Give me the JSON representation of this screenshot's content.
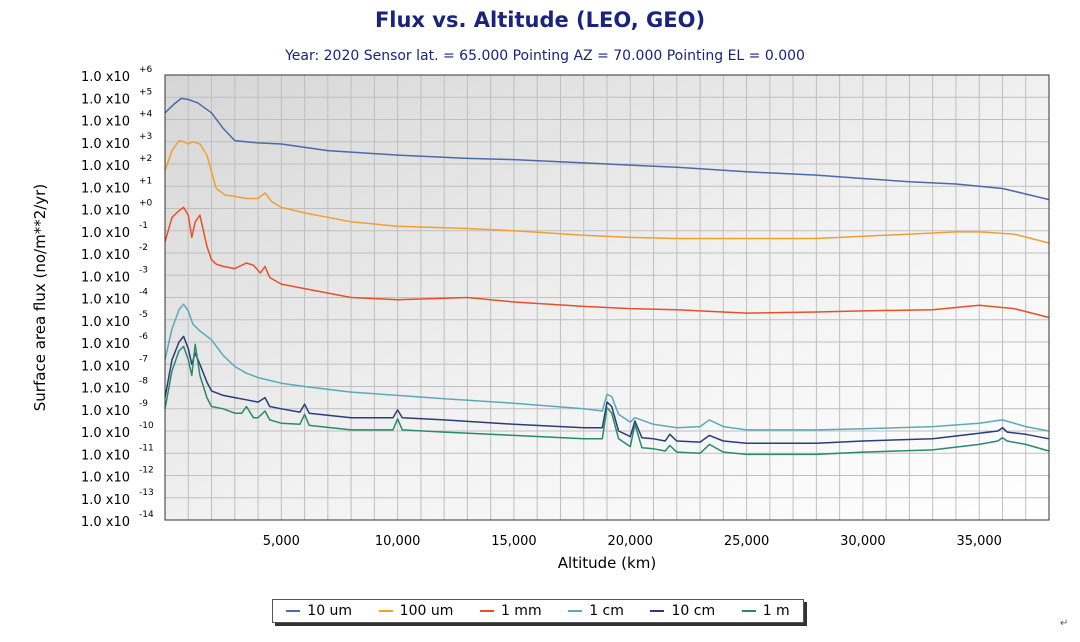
{
  "header": {
    "title": "Flux vs. Altitude (LEO, GEO)",
    "subtitle": "Year: 2020  Sensor lat. =  65.000  Pointing AZ =  70.000  Pointing EL =    0.000"
  },
  "chart_data": {
    "type": "line",
    "title": "Flux vs. Altitude (LEO, GEO)",
    "xlabel": "Altitude (km)",
    "ylabel": "Surface area flux (no/m**2/yr)",
    "xlim": [
      0,
      38000
    ],
    "ylim_log10": [
      -14,
      6
    ],
    "yscale": "log",
    "grid": true,
    "legend_position": "bottom",
    "x_ticks": [
      "5,000",
      "10,000",
      "15,000",
      "20,000",
      "25,000",
      "30,000",
      "35,000"
    ],
    "y_ticks": [
      {
        "base": "1.0 x10",
        "exp": "+6"
      },
      {
        "base": "1.0 x10",
        "exp": "+5"
      },
      {
        "base": "1.0 x10",
        "exp": "+4"
      },
      {
        "base": "1.0 x10",
        "exp": "+3"
      },
      {
        "base": "1.0 x10",
        "exp": "+2"
      },
      {
        "base": "1.0 x10",
        "exp": "+1"
      },
      {
        "base": "1.0 x10",
        "exp": "+0"
      },
      {
        "base": "1.0 x10",
        "exp": "-1"
      },
      {
        "base": "1.0 x10",
        "exp": "-2"
      },
      {
        "base": "1.0 x10",
        "exp": "-3"
      },
      {
        "base": "1.0 x10",
        "exp": "-4"
      },
      {
        "base": "1.0 x10",
        "exp": "-5"
      },
      {
        "base": "1.0 x10",
        "exp": "-6"
      },
      {
        "base": "1.0 x10",
        "exp": "-7"
      },
      {
        "base": "1.0 x10",
        "exp": "-8"
      },
      {
        "base": "1.0 x10",
        "exp": "-9"
      },
      {
        "base": "1.0 x10",
        "exp": "-10"
      },
      {
        "base": "1.0 x10",
        "exp": "-11"
      },
      {
        "base": "1.0 x10",
        "exp": "-12"
      },
      {
        "base": "1.0 x10",
        "exp": "-13"
      },
      {
        "base": "1.0 x10",
        "exp": "-14"
      }
    ],
    "series": [
      {
        "name": "10 um",
        "color": "#4a6aab",
        "x": [
          0,
          400,
          700,
          1000,
          1400,
          2000,
          2500,
          3000,
          4000,
          5000,
          7000,
          10000,
          13000,
          15000,
          18000,
          20000,
          22000,
          25000,
          28000,
          30000,
          32000,
          34000,
          36000,
          37000,
          38000
        ],
        "y": [
          4.3,
          4.7,
          4.95,
          4.9,
          4.75,
          4.3,
          3.6,
          3.05,
          2.95,
          2.9,
          2.6,
          2.4,
          2.25,
          2.2,
          2.05,
          1.95,
          1.85,
          1.65,
          1.5,
          1.35,
          1.2,
          1.1,
          0.9,
          0.65,
          0.4
        ]
      },
      {
        "name": "100 um",
        "color": "#f0a030",
        "x": [
          0,
          300,
          600,
          800,
          1000,
          1200,
          1500,
          1800,
          2200,
          2600,
          3000,
          3500,
          4000,
          4300,
          4600,
          5000,
          6000,
          8000,
          10000,
          13000,
          15000,
          18000,
          20000,
          22000,
          25000,
          28000,
          30000,
          32000,
          34000,
          35000,
          36500,
          38000
        ],
        "y": [
          1.7,
          2.6,
          3.05,
          3.0,
          2.9,
          3.0,
          2.9,
          2.4,
          0.9,
          0.6,
          0.55,
          0.45,
          0.45,
          0.7,
          0.3,
          0.05,
          -0.2,
          -0.6,
          -0.8,
          -0.9,
          -1.0,
          -1.2,
          -1.3,
          -1.35,
          -1.35,
          -1.35,
          -1.25,
          -1.15,
          -1.05,
          -1.05,
          -1.15,
          -1.55
        ]
      },
      {
        "name": "1 mm",
        "color": "#e8502a",
        "x": [
          0,
          300,
          600,
          800,
          1000,
          1150,
          1300,
          1500,
          1800,
          2000,
          2200,
          2500,
          3000,
          3500,
          3800,
          4100,
          4300,
          4500,
          5000,
          6000,
          8000,
          10000,
          13000,
          15000,
          18000,
          20000,
          22000,
          25000,
          28000,
          30000,
          33000,
          35000,
          36500,
          38000
        ],
        "y": [
          -1.5,
          -0.4,
          -0.1,
          0.05,
          -0.3,
          -1.3,
          -0.6,
          -0.3,
          -1.7,
          -2.3,
          -2.5,
          -2.6,
          -2.7,
          -2.45,
          -2.55,
          -2.9,
          -2.6,
          -3.1,
          -3.4,
          -3.6,
          -4.0,
          -4.1,
          -4.0,
          -4.2,
          -4.4,
          -4.5,
          -4.55,
          -4.7,
          -4.65,
          -4.6,
          -4.55,
          -4.35,
          -4.5,
          -4.9
        ]
      },
      {
        "name": "1 cm",
        "color": "#5aaabb",
        "x": [
          0,
          300,
          600,
          800,
          1000,
          1200,
          1500,
          2000,
          2500,
          3000,
          3500,
          4000,
          5000,
          6000,
          8000,
          10000,
          12000,
          15000,
          18000,
          18800,
          19000,
          19200,
          19500,
          20000,
          20200,
          21000,
          22000,
          23000,
          23400,
          24000,
          25000,
          28000,
          30000,
          33000,
          35000,
          36000,
          37000,
          38000
        ],
        "y": [
          -6.8,
          -5.4,
          -4.55,
          -4.3,
          -4.6,
          -5.2,
          -5.5,
          -5.9,
          -6.6,
          -7.1,
          -7.4,
          -7.6,
          -7.85,
          -8.0,
          -8.25,
          -8.4,
          -8.55,
          -8.75,
          -9.0,
          -9.1,
          -8.35,
          -8.45,
          -9.25,
          -9.6,
          -9.4,
          -9.7,
          -9.85,
          -9.8,
          -9.5,
          -9.8,
          -9.95,
          -9.95,
          -9.9,
          -9.8,
          -9.65,
          -9.5,
          -9.8,
          -10.0
        ]
      },
      {
        "name": "10 cm",
        "color": "#2a3d7a",
        "x": [
          0,
          300,
          600,
          800,
          1000,
          1150,
          1300,
          1500,
          1800,
          2000,
          2500,
          3000,
          3500,
          4000,
          4300,
          4500,
          5000,
          5800,
          6000,
          6200,
          8000,
          9800,
          10000,
          10200,
          12000,
          15000,
          18000,
          18800,
          19000,
          19200,
          19500,
          20000,
          20200,
          20500,
          21000,
          21500,
          21700,
          22000,
          23000,
          23400,
          24000,
          25000,
          28000,
          30000,
          33000,
          35000,
          35800,
          36000,
          36200,
          37000,
          38000
        ],
        "y": [
          -8.5,
          -6.8,
          -6.0,
          -5.75,
          -6.3,
          -7.0,
          -6.5,
          -7.0,
          -7.8,
          -8.2,
          -8.4,
          -8.5,
          -8.6,
          -8.7,
          -8.5,
          -8.9,
          -9.0,
          -9.15,
          -8.8,
          -9.2,
          -9.4,
          -9.4,
          -9.05,
          -9.4,
          -9.5,
          -9.7,
          -9.85,
          -9.85,
          -8.7,
          -8.9,
          -10.0,
          -10.25,
          -9.55,
          -10.3,
          -10.35,
          -10.45,
          -10.15,
          -10.45,
          -10.5,
          -10.2,
          -10.45,
          -10.55,
          -10.55,
          -10.45,
          -10.35,
          -10.1,
          -10.0,
          -9.85,
          -10.05,
          -10.15,
          -10.35
        ]
      },
      {
        "name": "1 m",
        "color": "#2a8a6a",
        "x": [
          0,
          300,
          600,
          800,
          1000,
          1150,
          1300,
          1500,
          1800,
          2000,
          2500,
          3000,
          3300,
          3500,
          3800,
          4000,
          4300,
          4500,
          5000,
          5800,
          6000,
          6200,
          8000,
          9800,
          10000,
          10200,
          12000,
          15000,
          18000,
          18800,
          19000,
          19200,
          19500,
          20000,
          20200,
          20500,
          21000,
          21500,
          21700,
          22000,
          23000,
          23400,
          24000,
          25000,
          28000,
          30000,
          33000,
          35000,
          35800,
          36000,
          36200,
          37000,
          38000
        ],
        "y": [
          -9.0,
          -7.3,
          -6.4,
          -6.2,
          -6.8,
          -7.5,
          -6.1,
          -7.5,
          -8.5,
          -8.9,
          -9.0,
          -9.2,
          -9.2,
          -8.9,
          -9.4,
          -9.4,
          -9.1,
          -9.5,
          -9.65,
          -9.7,
          -9.25,
          -9.75,
          -9.95,
          -9.95,
          -9.45,
          -9.95,
          -10.05,
          -10.2,
          -10.35,
          -10.35,
          -8.95,
          -9.2,
          -10.35,
          -10.7,
          -9.7,
          -10.75,
          -10.8,
          -10.9,
          -10.65,
          -10.95,
          -11.0,
          -10.6,
          -10.95,
          -11.05,
          -11.05,
          -10.95,
          -10.85,
          -10.6,
          -10.45,
          -10.3,
          -10.45,
          -10.6,
          -10.9
        ]
      }
    ]
  },
  "legend": {
    "items": [
      {
        "label": "10 um",
        "color": "#4a6aab"
      },
      {
        "label": "100 um",
        "color": "#f0a030"
      },
      {
        "label": "1 mm",
        "color": "#e8502a"
      },
      {
        "label": "1 cm",
        "color": "#5aaabb"
      },
      {
        "label": "10 cm",
        "color": "#2a3d7a"
      },
      {
        "label": "1 m",
        "color": "#2a8a6a"
      }
    ]
  },
  "page_mark": "↵"
}
